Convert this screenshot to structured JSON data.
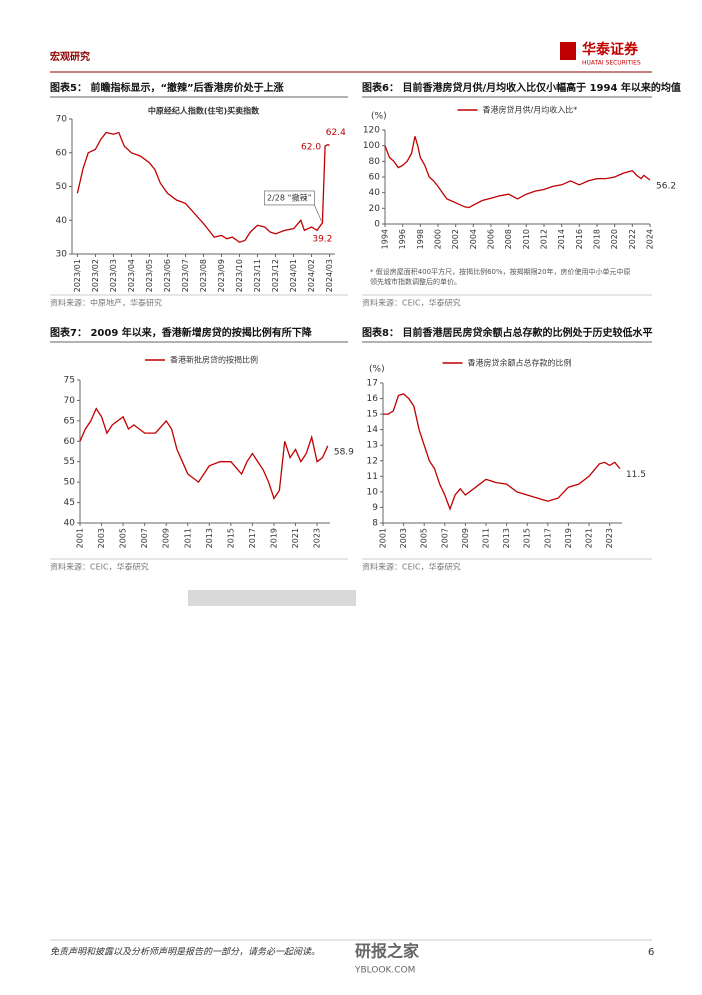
{
  "header": {
    "section": "宏观研究",
    "logo": "华泰证券",
    "logo_en": "HUATAI SECURITIES"
  },
  "chart_data": [
    {
      "type": "line",
      "caption": "图表5： 前瞻指标显示，“撤辣”后香港房价处于上涨",
      "title": "中原经纪人指数(住宅)买卖指数",
      "source": "资料来源：中原地产，华泰研究",
      "annotations": [
        "62.4",
        "62.0",
        "39.2",
        "2/28 “撤辣”"
      ],
      "xlim": [
        -0.3,
        14.3
      ],
      "xticks": [
        {
          "value": 0,
          "label": "2023/01"
        },
        {
          "value": 1,
          "label": "2023/02"
        },
        {
          "value": 2,
          "label": "2023/03"
        },
        {
          "value": 3,
          "label": "2023/04"
        },
        {
          "value": 4,
          "label": "2023/05"
        },
        {
          "value": 5,
          "label": "2023/06"
        },
        {
          "value": 6,
          "label": "2023/07"
        },
        {
          "value": 7,
          "label": "2023/08"
        },
        {
          "value": 8,
          "label": "2023/09"
        },
        {
          "value": 9,
          "label": "2023/10"
        },
        {
          "value": 10,
          "label": "2023/11"
        },
        {
          "value": 11,
          "label": "2023/12"
        },
        {
          "value": 12,
          "label": "2024/01"
        },
        {
          "value": 13,
          "label": "2024/02"
        },
        {
          "value": 14,
          "label": "2024/03"
        }
      ],
      "ylim": [
        30,
        70
      ],
      "yticks": [
        30,
        40,
        50,
        60,
        70
      ],
      "series": [
        {
          "color": "#c00000",
          "x": [
            0,
            0.3,
            0.6,
            1,
            1.3,
            1.6,
            2,
            2.3,
            2.6,
            3,
            3.5,
            4,
            4.3,
            4.6,
            5,
            5.5,
            6,
            6.5,
            7,
            7.3,
            7.6,
            8,
            8.3,
            8.6,
            9,
            9.3,
            9.6,
            10,
            10.4,
            10.7,
            11,
            11.5,
            12,
            12.4,
            12.6,
            13,
            13.3,
            13.6,
            13.75,
            13.9,
            14
          ],
          "values": [
            48,
            55,
            60,
            61,
            64,
            66,
            65.5,
            66,
            62,
            60,
            59,
            57,
            55,
            51,
            48,
            46,
            45,
            42,
            39,
            37,
            35,
            35.5,
            34.5,
            35,
            33.5,
            34,
            36.5,
            38.5,
            38,
            36.5,
            36,
            37,
            37.5,
            40,
            37,
            38,
            37,
            39.2,
            62.0,
            62.4,
            62.2
          ]
        }
      ]
    },
    {
      "type": "line",
      "caption": "图表6： 目前香港房贷月供/月均收入比仅小幅高于 1994 年以来的均值",
      "source": "资料来源：CEIC，华泰研究",
      "y_unit": "(%)",
      "footnote": [
        "* 假设房屋面积400平方尺，按揭比例60%，按揭期限20年，房价使用中小单元中原",
        "领先城市指数调整后的单价。"
      ],
      "end_label": "56.2",
      "xlim": [
        1994,
        2024
      ],
      "xticks": [
        1994,
        1996,
        1998,
        2000,
        2002,
        2004,
        2006,
        2008,
        2010,
        2012,
        2014,
        2016,
        2018,
        2020,
        2022,
        2024
      ],
      "ylim": [
        0,
        120
      ],
      "yticks": [
        0,
        20,
        40,
        60,
        80,
        100,
        120
      ],
      "series": [
        {
          "name": "香港房贷月供/月均收入比*",
          "color": "#c00000",
          "x": [
            1994,
            1994.5,
            1995,
            1995.5,
            1996,
            1996.5,
            1997,
            1997.4,
            1997.7,
            1998,
            1998.5,
            1999,
            1999.5,
            2000,
            2000.5,
            2001,
            2002,
            2003,
            2003.5,
            2004,
            2005,
            2006,
            2007,
            2008,
            2008.5,
            2009,
            2010,
            2011,
            2012,
            2013,
            2014,
            2015,
            2016,
            2017,
            2018,
            2019,
            2020,
            2021,
            2022,
            2022.5,
            2023,
            2023.3,
            2024
          ],
          "values": [
            100,
            85,
            80,
            72,
            75,
            80,
            90,
            112,
            100,
            85,
            75,
            60,
            55,
            48,
            40,
            32,
            27,
            22,
            21,
            24,
            30,
            33,
            36,
            38,
            35,
            32,
            38,
            42,
            44,
            48,
            50,
            55,
            50,
            55,
            58,
            58,
            60,
            65,
            68,
            62,
            58,
            62,
            56.2
          ]
        }
      ]
    },
    {
      "type": "line",
      "caption": "图表7： 2009 年以来，香港新增房贷的按揭比例有所下降",
      "source": "资料来源：CEIC，华泰研究",
      "end_label": "58.9",
      "xlim": [
        2001,
        2024.2
      ],
      "xticks": [
        2001,
        2003,
        2005,
        2007,
        2009,
        2011,
        2013,
        2015,
        2017,
        2019,
        2021,
        2023
      ],
      "ylim": [
        40,
        75
      ],
      "yticks": [
        40,
        45,
        50,
        55,
        60,
        65,
        70,
        75
      ],
      "series": [
        {
          "name": "香港新批房贷的按揭比例",
          "color": "#c00000",
          "x": [
            2001,
            2001.5,
            2002,
            2002.5,
            2003,
            2003.5,
            2004,
            2005,
            2005.5,
            2006,
            2007,
            2008,
            2009,
            2009.5,
            2010,
            2010.5,
            2011,
            2012,
            2013,
            2014,
            2015,
            2016,
            2016.5,
            2017,
            2018,
            2018.5,
            2019,
            2019.5,
            2020,
            2020.5,
            2021,
            2021.5,
            2022,
            2022.5,
            2023,
            2023.5,
            2024
          ],
          "values": [
            60,
            63,
            65,
            68,
            66,
            62,
            64,
            66,
            63,
            64,
            62,
            62,
            65,
            63,
            58,
            55,
            52,
            50,
            54,
            55,
            55,
            52,
            55,
            57,
            53,
            50,
            46,
            48,
            60,
            56,
            58,
            55,
            57,
            61,
            55,
            56,
            58.9
          ]
        }
      ]
    },
    {
      "type": "line",
      "caption": "图表8： 目前香港居民房贷余额占总存款的比例处于历史较低水平",
      "source": "资料来源：CEIC，华泰研究",
      "y_unit": "(%)",
      "end_label": "11.5",
      "xlim": [
        2001,
        2024.2
      ],
      "xticks": [
        2001,
        2003,
        2005,
        2007,
        2009,
        2011,
        2013,
        2015,
        2017,
        2019,
        2021,
        2023
      ],
      "ylim": [
        8,
        17
      ],
      "yticks": [
        8,
        9,
        10,
        11,
        12,
        13,
        14,
        15,
        16,
        17
      ],
      "series": [
        {
          "name": "香港房贷余额占总存款的比例",
          "color": "#c00000",
          "x": [
            2001,
            2001.5,
            2002,
            2002.5,
            2003,
            2003.5,
            2004,
            2004.5,
            2005,
            2005.5,
            2006,
            2006.5,
            2007,
            2007.5,
            2008,
            2008.5,
            2009,
            2010,
            2011,
            2012,
            2013,
            2014,
            2015,
            2016,
            2017,
            2018,
            2019,
            2020,
            2021,
            2022,
            2022.5,
            2023,
            2023.5,
            2024
          ],
          "values": [
            15,
            15,
            15.2,
            16.2,
            16.3,
            16,
            15.5,
            14,
            13,
            12,
            11.5,
            10.5,
            9.8,
            8.9,
            9.8,
            10.2,
            9.8,
            10.3,
            10.8,
            10.6,
            10.5,
            10,
            9.8,
            9.6,
            9.4,
            9.6,
            10.3,
            10.5,
            11,
            11.8,
            11.9,
            11.7,
            11.9,
            11.5
          ]
        }
      ]
    }
  ],
  "footer": {
    "disclaimer": "免责声明和披露以及分析师声明是报告的一部分，请务必一起阅读。",
    "page": "6",
    "watermark": "研报之家",
    "watermark_url": "YBLOOK.COM"
  }
}
